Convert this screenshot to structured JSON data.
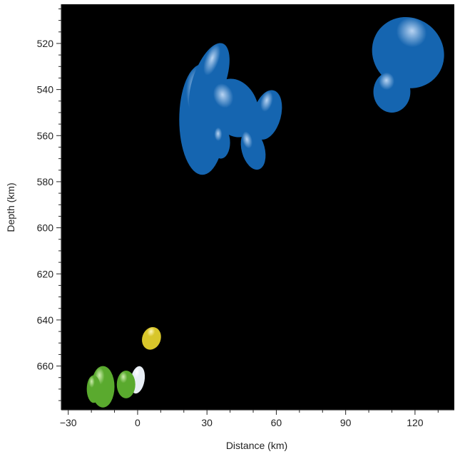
{
  "chart_data": {
    "type": "scatter",
    "title": "",
    "xlabel": "Distance (km)",
    "ylabel": "Depth (km)",
    "xlim": [
      -33,
      137
    ],
    "ylim": [
      503,
      679
    ],
    "y_inverted": true,
    "background": "#000000",
    "grid": false,
    "x_ticks": [
      -30,
      0,
      30,
      60,
      90,
      120
    ],
    "x_tick_labels": [
      "−30",
      "0",
      "30",
      "60",
      "90",
      "120"
    ],
    "y_ticks": [
      520,
      540,
      560,
      580,
      600,
      620,
      640,
      660
    ],
    "series": [
      {
        "color": "#1565b0",
        "highlight": "#b9d4f2",
        "points": [
          {
            "x": 28,
            "y": 553,
            "rx": 10,
            "ry": 24,
            "rot": 0
          },
          {
            "x": 31,
            "y": 536,
            "rx": 7,
            "ry": 17,
            "rot": 20
          },
          {
            "x": 42,
            "y": 548,
            "rx": 10,
            "ry": 13,
            "rot": -20
          },
          {
            "x": 56,
            "y": 551,
            "rx": 6,
            "ry": 11,
            "rot": 15
          },
          {
            "x": 50,
            "y": 566,
            "rx": 5,
            "ry": 9,
            "rot": -15
          },
          {
            "x": 36,
            "y": 563,
            "rx": 4,
            "ry": 7,
            "rot": 0
          },
          {
            "x": 117,
            "y": 524,
            "rx": 16,
            "ry": 15,
            "rot": 40
          },
          {
            "x": 110,
            "y": 541,
            "rx": 8,
            "ry": 9,
            "rot": 0
          }
        ]
      },
      {
        "color": "#d8c62a",
        "highlight": "#fff7b8",
        "points": [
          {
            "x": 6,
            "y": 648,
            "rx": 4,
            "ry": 5,
            "rot": 20
          }
        ]
      },
      {
        "color": "#e8eef5",
        "highlight": "#ffffff",
        "points": [
          {
            "x": 0,
            "y": 666,
            "rx": 3,
            "ry": 6,
            "rot": 10
          }
        ]
      },
      {
        "color": "#5aaa2e",
        "highlight": "#cfeeb0",
        "points": [
          {
            "x": -15,
            "y": 669,
            "rx": 5,
            "ry": 9,
            "rot": 0
          },
          {
            "x": -19,
            "y": 670,
            "rx": 3,
            "ry": 6,
            "rot": 0
          },
          {
            "x": -5,
            "y": 668,
            "rx": 4,
            "ry": 6,
            "rot": 0
          }
        ]
      }
    ]
  }
}
